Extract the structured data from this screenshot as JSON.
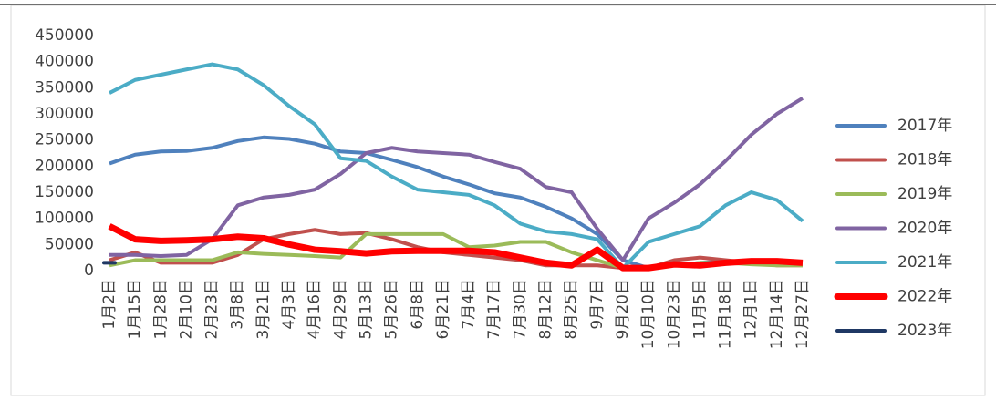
{
  "chart_data": {
    "type": "line",
    "categories": [
      "1月2日",
      "1月15日",
      "1月28日",
      "2月10日",
      "2月23日",
      "3月8日",
      "3月21日",
      "4月3日",
      "4月16日",
      "4月29日",
      "5月13日",
      "5月26日",
      "6月8日",
      "6月21日",
      "7月4日",
      "7月17日",
      "7月30日",
      "8月12日",
      "8月25日",
      "9月7日",
      "9月20日",
      "10月10日",
      "10月23日",
      "11月5日",
      "11月18日",
      "12月1日",
      "12月14日",
      "12月27日"
    ],
    "series": [
      {
        "name": "2017年",
        "color": "#4f81bd",
        "line_width": 4,
        "values": [
          205000,
          222000,
          228000,
          229000,
          235000,
          248000,
          255000,
          252000,
          243000,
          228000,
          225000,
          212000,
          198000,
          180000,
          165000,
          148000,
          140000,
          122000,
          100000,
          70000,
          20000,
          5000,
          10000,
          15000,
          18000,
          18000,
          15000,
          15000
        ]
      },
      {
        "name": "2018年",
        "color": "#c0504d",
        "line_width": 4,
        "values": [
          20000,
          35000,
          15000,
          15000,
          15000,
          30000,
          60000,
          70000,
          78000,
          70000,
          72000,
          60000,
          45000,
          35000,
          30000,
          25000,
          20000,
          10000,
          10000,
          10000,
          5000,
          5000,
          20000,
          25000,
          20000,
          15000,
          10000,
          10000
        ]
      },
      {
        "name": "2019年",
        "color": "#9bbb59",
        "line_width": 4,
        "values": [
          10000,
          20000,
          20000,
          20000,
          20000,
          35000,
          32000,
          30000,
          28000,
          25000,
          70000,
          70000,
          70000,
          70000,
          45000,
          48000,
          55000,
          55000,
          35000,
          20000,
          5000,
          5000,
          10000,
          15000,
          15000,
          12000,
          10000,
          10000
        ]
      },
      {
        "name": "2020年",
        "color": "#8064a2",
        "line_width": 4,
        "values": [
          30000,
          30000,
          28000,
          30000,
          60000,
          125000,
          140000,
          145000,
          155000,
          185000,
          225000,
          235000,
          228000,
          225000,
          222000,
          208000,
          195000,
          160000,
          150000,
          80000,
          20000,
          100000,
          130000,
          165000,
          210000,
          260000,
          300000,
          330000
        ]
      },
      {
        "name": "2021年",
        "color": "#4bacc6",
        "line_width": 4,
        "values": [
          340000,
          365000,
          375000,
          385000,
          395000,
          385000,
          355000,
          315000,
          280000,
          215000,
          210000,
          180000,
          155000,
          150000,
          145000,
          125000,
          90000,
          75000,
          70000,
          60000,
          5000,
          55000,
          70000,
          85000,
          125000,
          150000,
          135000,
          95000
        ]
      },
      {
        "name": "2022年",
        "color": "#ff0000",
        "line_width": 7,
        "values": [
          85000,
          60000,
          57000,
          58000,
          60000,
          65000,
          62000,
          50000,
          40000,
          37000,
          33000,
          37000,
          38000,
          38000,
          38000,
          35000,
          25000,
          15000,
          10000,
          40000,
          5000,
          5000,
          12000,
          10000,
          15000,
          18000,
          18000,
          15000
        ]
      },
      {
        "name": "2023年",
        "color": "#1f3864",
        "line_width": 4,
        "values": [
          15000,
          null,
          null,
          null,
          null,
          null,
          null,
          null,
          null,
          null,
          null,
          null,
          null,
          null,
          null,
          null,
          null,
          null,
          null,
          null,
          null,
          null,
          null,
          null,
          null,
          null,
          null,
          null
        ]
      }
    ],
    "ylim": [
      0,
      450000
    ],
    "yticks": [
      0,
      50000,
      100000,
      150000,
      200000,
      250000,
      300000,
      350000,
      400000,
      450000
    ],
    "legend": "right"
  }
}
